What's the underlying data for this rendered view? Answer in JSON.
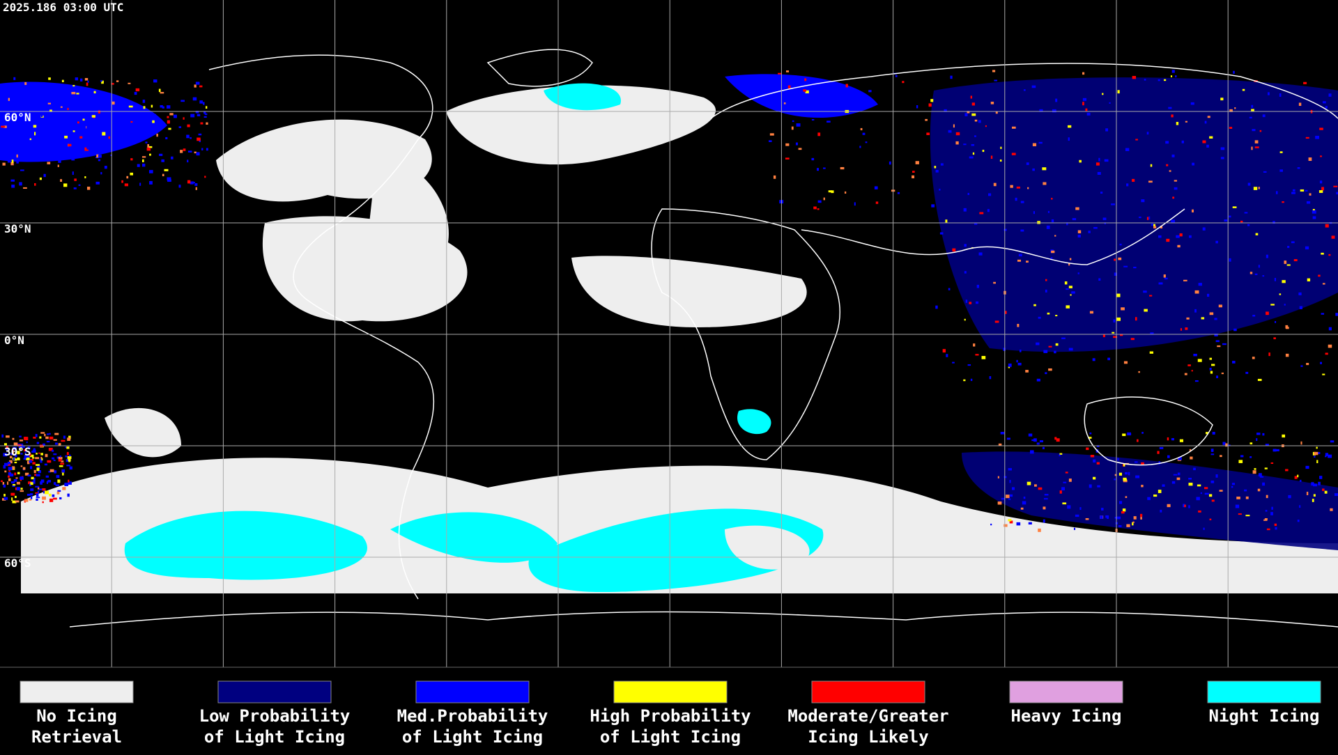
{
  "header": {
    "timestamp": "2025.186 03:00 UTC"
  },
  "map": {
    "latitude_labels": [
      "60°N",
      "30°N",
      "0°N",
      "30°S",
      "60°S"
    ]
  },
  "legend": {
    "items": [
      {
        "label_line1": "No Icing",
        "label_line2": "Retrieval",
        "color": "#eeeeee"
      },
      {
        "label_line1": "Low Probability",
        "label_line2": "of Light Icing",
        "color": "#000080"
      },
      {
        "label_line1": "Med.Probability",
        "label_line2": "of Light Icing",
        "color": "#0000ff"
      },
      {
        "label_line1": "High Probability",
        "label_line2": "of Light Icing",
        "color": "#ffff00"
      },
      {
        "label_line1": "Moderate/Greater",
        "label_line2": "Icing Likely",
        "color": "#ff0000"
      },
      {
        "label_line1": "Heavy Icing",
        "label_line2": "",
        "color": "#e0a0e0"
      },
      {
        "label_line1": "Night Icing",
        "label_line2": "",
        "color": "#00ffff"
      }
    ]
  }
}
